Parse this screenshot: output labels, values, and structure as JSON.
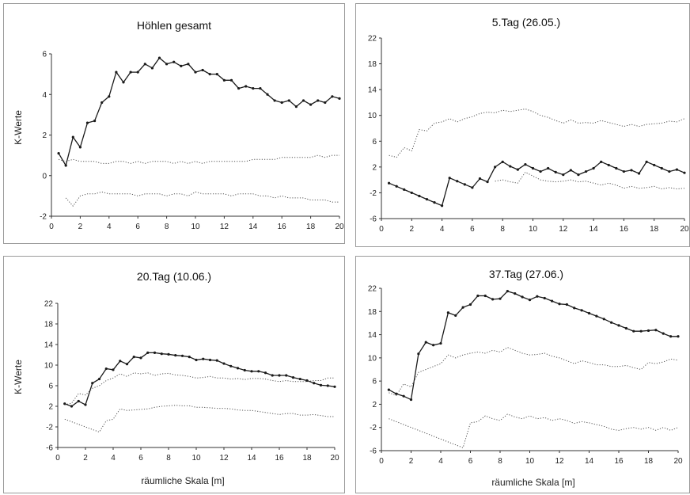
{
  "chart_data": [
    {
      "type": "line",
      "title": "Höhlen gesamt",
      "ylabel": "K-Werte",
      "xlabel": "",
      "xlim": [
        0,
        20
      ],
      "ylim": [
        -2,
        6
      ],
      "xticks": [
        "0",
        "2",
        "4",
        "6",
        "8",
        "10",
        "12",
        "14",
        "16",
        "18",
        "20"
      ],
      "yticks": [
        "-2",
        "0",
        "2",
        "4",
        "6"
      ],
      "series": [
        {
          "style": "solid",
          "x": [
            0.5,
            1,
            1.5,
            2,
            2.5,
            3,
            3.5,
            4,
            4.5,
            5,
            5.5,
            6,
            6.5,
            7,
            7.5,
            8,
            8.5,
            9,
            9.5,
            10,
            10.5,
            11,
            11.5,
            12,
            12.5,
            13,
            13.5,
            14,
            14.5,
            15,
            15.5,
            16,
            16.5,
            17,
            17.5,
            18,
            18.5,
            19,
            19.5,
            20
          ],
          "y": [
            1.1,
            0.5,
            1.9,
            1.4,
            2.6,
            2.7,
            3.6,
            3.9,
            5.1,
            4.6,
            5.1,
            5.1,
            5.5,
            5.3,
            5.8,
            5.5,
            5.6,
            5.4,
            5.5,
            5.1,
            5.2,
            5.0,
            5.0,
            4.7,
            4.7,
            4.3,
            4.4,
            4.3,
            4.3,
            4.0,
            3.7,
            3.6,
            3.7,
            3.4,
            3.7,
            3.5,
            3.7,
            3.6,
            3.9,
            3.8
          ]
        },
        {
          "style": "dotted",
          "x": [
            0.5,
            1,
            1.5,
            2,
            2.5,
            3,
            3.5,
            4,
            4.5,
            5,
            5.5,
            6,
            6.5,
            7,
            7.5,
            8,
            8.5,
            9,
            9.5,
            10,
            10.5,
            11,
            11.5,
            12,
            12.5,
            13,
            13.5,
            14,
            14.5,
            15,
            15.5,
            16,
            16.5,
            17,
            17.5,
            18,
            18.5,
            19,
            19.5,
            20
          ],
          "y": [
            0.8,
            0.7,
            0.8,
            0.7,
            0.7,
            0.7,
            0.6,
            0.6,
            0.7,
            0.7,
            0.6,
            0.7,
            0.6,
            0.7,
            0.7,
            0.7,
            0.6,
            0.7,
            0.6,
            0.7,
            0.6,
            0.7,
            0.7,
            0.7,
            0.7,
            0.7,
            0.7,
            0.8,
            0.8,
            0.8,
            0.8,
            0.9,
            0.9,
            0.9,
            0.9,
            0.9,
            1.0,
            0.9,
            1.0,
            1.0
          ]
        },
        {
          "style": "dotted",
          "x": [
            1,
            1.5,
            2,
            2.5,
            3,
            3.5,
            4,
            4.5,
            5,
            5.5,
            6,
            6.5,
            7,
            7.5,
            8,
            8.5,
            9,
            9.5,
            10,
            10.5,
            11,
            11.5,
            12,
            12.5,
            13,
            13.5,
            14,
            14.5,
            15,
            15.5,
            16,
            16.5,
            17,
            17.5,
            18,
            18.5,
            19,
            19.5,
            20
          ],
          "y": [
            -1.1,
            -1.5,
            -1.0,
            -0.9,
            -0.9,
            -0.8,
            -0.9,
            -0.9,
            -0.9,
            -0.9,
            -1.0,
            -0.9,
            -0.9,
            -0.9,
            -1.0,
            -0.9,
            -0.9,
            -1.0,
            -0.8,
            -0.9,
            -0.9,
            -0.9,
            -0.9,
            -1.0,
            -0.9,
            -0.9,
            -0.9,
            -1.0,
            -1.0,
            -1.1,
            -1.0,
            -1.1,
            -1.1,
            -1.1,
            -1.2,
            -1.2,
            -1.2,
            -1.3,
            -1.3
          ]
        }
      ]
    },
    {
      "type": "line",
      "title": "5.Tag (26.05.)",
      "ylabel": "",
      "xlabel": "",
      "xlim": [
        0,
        20
      ],
      "ylim": [
        -6,
        22
      ],
      "xticks": [
        "0",
        "2",
        "4",
        "6",
        "8",
        "10",
        "12",
        "14",
        "16",
        "18",
        "20"
      ],
      "yticks": [
        "-6",
        "-2",
        "2",
        "6",
        "10",
        "14",
        "18",
        "22"
      ],
      "series": [
        {
          "style": "solid",
          "x": [
            0.5,
            1,
            1.5,
            2,
            2.5,
            3,
            3.5,
            4,
            4.5,
            5,
            5.5,
            6,
            6.5,
            7,
            7.5,
            8,
            8.5,
            9,
            9.5,
            10,
            10.5,
            11,
            11.5,
            12,
            12.5,
            13,
            13.5,
            14,
            14.5,
            15,
            15.5,
            16,
            16.5,
            17,
            17.5,
            18,
            18.5,
            19,
            19.5,
            20
          ],
          "y": [
            -0.5,
            -1.0,
            -1.5,
            -2.0,
            -2.5,
            -3.0,
            -3.5,
            -4.0,
            0.3,
            -0.2,
            -0.7,
            -1.2,
            0.2,
            -0.3,
            2.0,
            2.8,
            2.1,
            1.6,
            2.4,
            1.8,
            1.3,
            1.8,
            1.2,
            0.8,
            1.5,
            0.8,
            1.3,
            1.8,
            2.8,
            2.3,
            1.8,
            1.3,
            1.5,
            1.0,
            2.8,
            2.3,
            1.8,
            1.3,
            1.6,
            1.1
          ]
        },
        {
          "style": "dotted",
          "x": [
            0.5,
            1,
            1.5,
            2,
            2.5,
            3,
            3.5,
            4,
            4.5,
            5,
            5.5,
            6,
            6.5,
            7,
            7.5,
            8,
            8.5,
            9,
            9.5,
            10,
            10.5,
            11,
            11.5,
            12,
            12.5,
            13,
            13.5,
            14,
            14.5,
            15,
            15.5,
            16,
            16.5,
            17,
            17.5,
            18,
            18.5,
            19,
            19.5,
            20
          ],
          "y": [
            3.8,
            3.5,
            5.0,
            4.5,
            7.8,
            7.6,
            8.8,
            9.0,
            9.5,
            9.0,
            9.5,
            9.8,
            10.3,
            10.5,
            10.4,
            10.8,
            10.6,
            10.8,
            11.0,
            10.6,
            10.0,
            9.7,
            9.2,
            8.8,
            9.3,
            8.8,
            8.9,
            8.8,
            9.2,
            8.9,
            8.6,
            8.3,
            8.6,
            8.3,
            8.6,
            8.7,
            8.8,
            9.1,
            9.0,
            9.5
          ]
        },
        {
          "style": "dotted",
          "x": [
            7.5,
            8,
            8.5,
            9,
            9.5,
            10,
            10.5,
            11,
            11.5,
            12,
            12.5,
            13,
            13.5,
            14,
            14.5,
            15,
            15.5,
            16,
            16.5,
            17,
            17.5,
            18,
            18.5,
            19,
            19.5,
            20
          ],
          "y": [
            -0.2,
            0.0,
            -0.3,
            -0.5,
            1.2,
            0.6,
            0.0,
            -0.2,
            -0.3,
            -0.2,
            0.0,
            -0.3,
            -0.2,
            -0.5,
            -0.8,
            -0.5,
            -0.8,
            -1.3,
            -1.0,
            -1.3,
            -1.2,
            -1.0,
            -1.4,
            -1.2,
            -1.4,
            -1.3
          ]
        }
      ]
    },
    {
      "type": "line",
      "title": "20.Tag (10.06.)",
      "ylabel": "K-Werte",
      "xlabel": "räumliche Skala [m]",
      "xlim": [
        0,
        20
      ],
      "ylim": [
        -6,
        22
      ],
      "xticks": [
        "0",
        "2",
        "4",
        "6",
        "8",
        "10",
        "12",
        "14",
        "16",
        "18",
        "20"
      ],
      "yticks": [
        "-6",
        "-2",
        "2",
        "6",
        "10",
        "14",
        "18",
        "22"
      ],
      "series": [
        {
          "style": "solid",
          "x": [
            0.5,
            1,
            1.5,
            2,
            2.5,
            3,
            3.5,
            4,
            4.5,
            5,
            5.5,
            6,
            6.5,
            7,
            7.5,
            8,
            8.5,
            9,
            9.5,
            10,
            10.5,
            11,
            11.5,
            12,
            12.5,
            13,
            13.5,
            14,
            14.5,
            15,
            15.5,
            16,
            16.5,
            17,
            17.5,
            18,
            18.5,
            19,
            19.5,
            20
          ],
          "y": [
            2.5,
            2.0,
            3.0,
            2.3,
            6.5,
            7.3,
            9.3,
            9.1,
            10.8,
            10.2,
            11.6,
            11.4,
            12.4,
            12.4,
            12.2,
            12.1,
            11.9,
            11.8,
            11.6,
            11.0,
            11.2,
            11.0,
            10.9,
            10.3,
            9.8,
            9.4,
            9.0,
            8.8,
            8.8,
            8.5,
            8.0,
            8.0,
            8.0,
            7.6,
            7.3,
            7.0,
            6.5,
            6.1,
            6.0,
            5.8
          ]
        },
        {
          "style": "dotted",
          "x": [
            0.5,
            1,
            1.5,
            2,
            2.5,
            3,
            3.5,
            4,
            4.5,
            5,
            5.5,
            6,
            6.5,
            7,
            7.5,
            8,
            8.5,
            9,
            9.5,
            10,
            10.5,
            11,
            11.5,
            12,
            12.5,
            13,
            13.5,
            14,
            14.5,
            15,
            15.5,
            16,
            16.5,
            17,
            17.5,
            18,
            18.5,
            19,
            19.5,
            20
          ],
          "y": [
            2.3,
            2.6,
            4.5,
            4.2,
            5.5,
            6.0,
            7.0,
            7.5,
            8.3,
            7.8,
            8.5,
            8.3,
            8.5,
            8.0,
            8.3,
            8.4,
            8.1,
            8.0,
            7.8,
            7.5,
            7.6,
            7.8,
            7.5,
            7.5,
            7.3,
            7.4,
            7.2,
            7.4,
            7.4,
            7.3,
            7.0,
            6.8,
            7.0,
            6.8,
            6.8,
            6.8,
            7.0,
            7.0,
            7.5,
            7.5
          ]
        },
        {
          "style": "dotted",
          "x": [
            0.5,
            1,
            1.5,
            2,
            2.5,
            3,
            3.5,
            4,
            4.5,
            5,
            5.5,
            6,
            6.5,
            7,
            7.5,
            8,
            8.5,
            9,
            9.5,
            10,
            10.5,
            11,
            11.5,
            12,
            12.5,
            13,
            13.5,
            14,
            14.5,
            15,
            15.5,
            16,
            16.5,
            17,
            17.5,
            18,
            18.5,
            19,
            19.5,
            20
          ],
          "y": [
            -0.5,
            -1.0,
            -1.5,
            -2.0,
            -2.5,
            -3.0,
            -0.8,
            -0.5,
            1.5,
            1.2,
            1.3,
            1.4,
            1.5,
            1.8,
            2.0,
            2.1,
            2.2,
            2.1,
            2.1,
            1.8,
            1.8,
            1.7,
            1.6,
            1.6,
            1.5,
            1.3,
            1.2,
            1.2,
            1.0,
            0.8,
            0.6,
            0.4,
            0.6,
            0.6,
            0.3,
            0.3,
            0.4,
            0.2,
            0.0,
            0.0
          ]
        }
      ]
    },
    {
      "type": "line",
      "title": "37.Tag (27.06.)",
      "ylabel": "",
      "xlabel": "räumliche Skala [m]",
      "xlim": [
        0,
        20
      ],
      "ylim": [
        -6,
        22
      ],
      "xticks": [
        "0",
        "2",
        "4",
        "6",
        "8",
        "10",
        "12",
        "14",
        "16",
        "18",
        "20"
      ],
      "yticks": [
        "-6",
        "-2",
        "2",
        "6",
        "10",
        "14",
        "18",
        "22"
      ],
      "series": [
        {
          "style": "solid",
          "x": [
            0.5,
            1,
            1.5,
            2,
            2.5,
            3,
            3.5,
            4,
            4.5,
            5,
            5.5,
            6,
            6.5,
            7,
            7.5,
            8,
            8.5,
            9,
            9.5,
            10,
            10.5,
            11,
            11.5,
            12,
            12.5,
            13,
            13.5,
            14,
            14.5,
            15,
            15.5,
            16,
            16.5,
            17,
            17.5,
            18,
            18.5,
            19,
            19.5,
            20
          ],
          "y": [
            4.5,
            3.8,
            3.4,
            2.8,
            10.7,
            12.7,
            12.2,
            12.5,
            17.8,
            17.3,
            18.7,
            19.2,
            20.7,
            20.7,
            20.1,
            20.2,
            21.5,
            21.1,
            20.5,
            20.0,
            20.6,
            20.3,
            19.8,
            19.3,
            19.2,
            18.6,
            18.2,
            17.7,
            17.2,
            16.7,
            16.1,
            15.6,
            15.1,
            14.6,
            14.6,
            14.7,
            14.8,
            14.2,
            13.7,
            13.7
          ]
        },
        {
          "style": "dotted",
          "x": [
            0.5,
            1,
            1.5,
            2,
            2.5,
            3,
            3.5,
            4,
            4.5,
            5,
            5.5,
            6,
            6.5,
            7,
            7.5,
            8,
            8.5,
            9,
            9.5,
            10,
            10.5,
            11,
            11.5,
            12,
            12.5,
            13,
            13.5,
            14,
            14.5,
            15,
            15.5,
            16,
            16.5,
            17,
            17.5,
            18,
            18.5,
            19,
            19.5,
            20
          ],
          "y": [
            4.0,
            3.5,
            5.5,
            5.0,
            7.5,
            8.0,
            8.5,
            9.0,
            10.5,
            10.0,
            10.5,
            10.8,
            11.0,
            10.8,
            11.3,
            11.0,
            11.8,
            11.3,
            10.8,
            10.5,
            10.6,
            10.8,
            10.3,
            10.0,
            9.5,
            9.0,
            9.5,
            9.2,
            8.8,
            8.8,
            8.5,
            8.5,
            8.7,
            8.3,
            8.0,
            9.2,
            9.0,
            9.3,
            9.8,
            9.6
          ]
        },
        {
          "style": "dotted",
          "x": [
            0.5,
            1,
            1.5,
            2,
            2.5,
            3,
            3.5,
            4,
            4.5,
            5,
            5.5,
            6,
            6.5,
            7,
            7.5,
            8,
            8.5,
            9,
            9.5,
            10,
            10.5,
            11,
            11.5,
            12,
            12.5,
            13,
            13.5,
            14,
            14.5,
            15,
            15.5,
            16,
            16.5,
            17,
            17.5,
            18,
            18.5,
            19,
            19.5,
            20
          ],
          "y": [
            -0.5,
            -1.0,
            -1.5,
            -2.0,
            -2.5,
            -3.0,
            -3.5,
            -4.0,
            -4.5,
            -5.0,
            -5.5,
            -1.2,
            -1.0,
            0.0,
            -0.5,
            -0.8,
            0.3,
            -0.2,
            -0.5,
            0.0,
            -0.5,
            -0.3,
            -0.8,
            -0.5,
            -0.8,
            -1.3,
            -1.0,
            -1.2,
            -1.5,
            -1.8,
            -2.3,
            -2.5,
            -2.2,
            -2.0,
            -2.3,
            -2.0,
            -2.5,
            -2.0,
            -2.5,
            -2.0
          ]
        }
      ]
    }
  ]
}
